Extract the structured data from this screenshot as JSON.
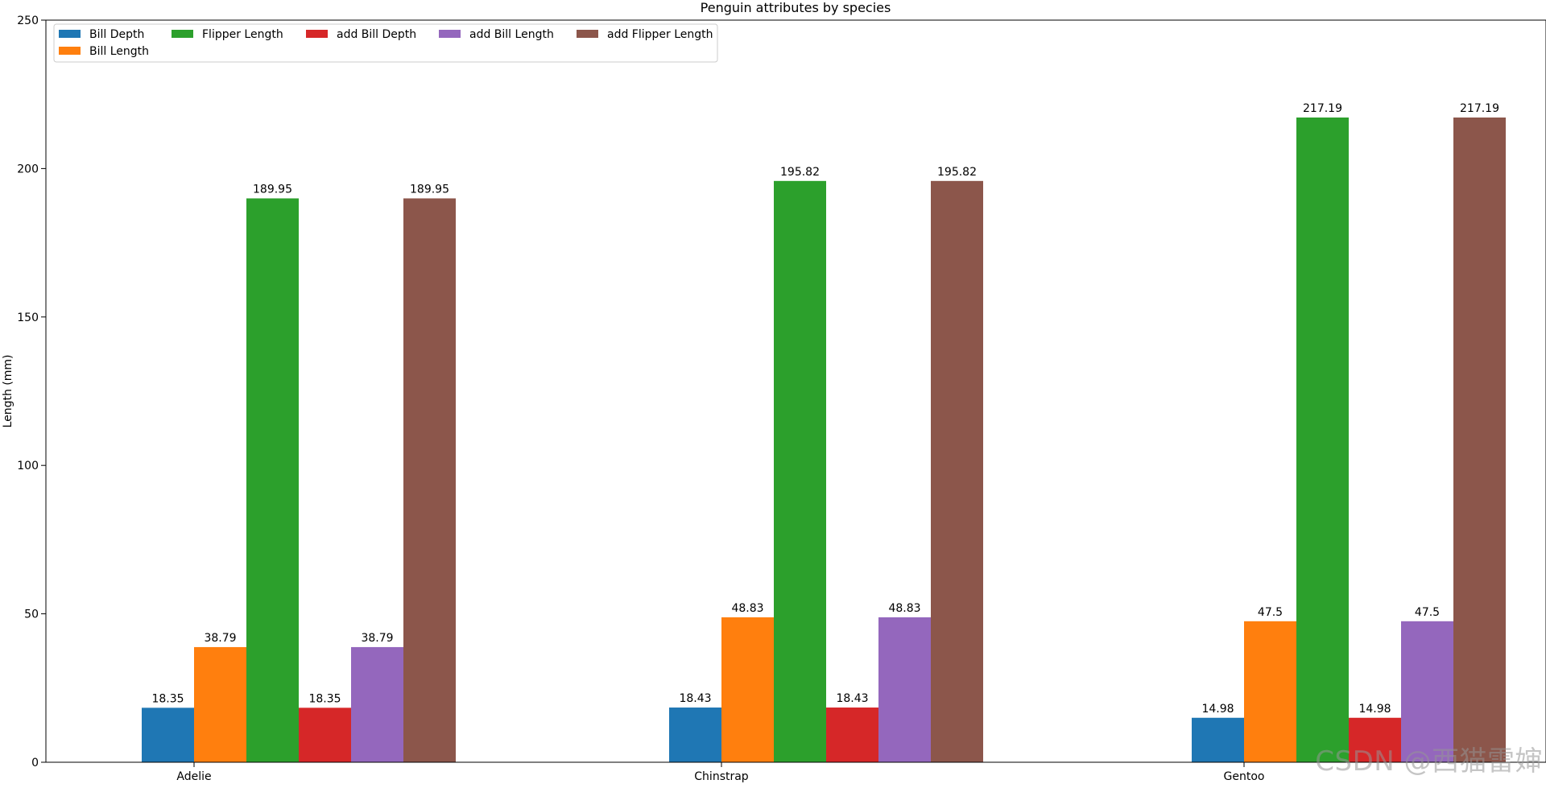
{
  "chart_data": {
    "type": "bar",
    "title": "Penguin attributes by species",
    "ylabel": "Length (mm)",
    "xlabel": "",
    "ylim": [
      0,
      250
    ],
    "yticks": [
      0,
      50,
      100,
      150,
      200,
      250
    ],
    "categories": [
      "Adelie",
      "Chinstrap",
      "Gentoo"
    ],
    "series": [
      {
        "name": "Bill Depth",
        "color": "#1f77b4",
        "values": [
          18.35,
          18.43,
          14.98
        ]
      },
      {
        "name": "Bill Length",
        "color": "#ff7f0e",
        "values": [
          38.79,
          48.83,
          47.5
        ]
      },
      {
        "name": "Flipper Length",
        "color": "#2ca02c",
        "values": [
          189.95,
          195.82,
          217.19
        ]
      },
      {
        "name": "add Bill Depth",
        "color": "#d62728",
        "values": [
          18.35,
          18.43,
          14.98
        ]
      },
      {
        "name": "add Bill Length",
        "color": "#9467bd",
        "values": [
          38.79,
          48.83,
          47.5
        ]
      },
      {
        "name": "add Flipper Length",
        "color": "#8c564b",
        "values": [
          189.95,
          195.82,
          217.19
        ]
      }
    ],
    "legend_position": "upper-left",
    "legend_columns": 5,
    "grid": false
  },
  "watermark": "CSDN @西猫雷婶"
}
